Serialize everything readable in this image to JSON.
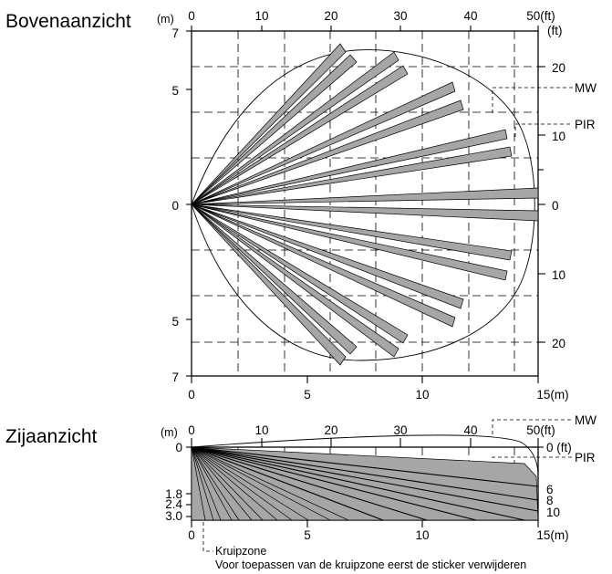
{
  "top_view": {
    "title": "Bovenaanzicht",
    "unit_m": "(m)",
    "unit_ft_top": "50(ft)",
    "unit_ft_right": "(ft)",
    "unit_m_bottom": "15(m)",
    "top_ft_ticks": [
      "0",
      "10",
      "20",
      "30",
      "40"
    ],
    "left_m_ticks": [
      "7",
      "5",
      "0",
      "5",
      "7"
    ],
    "right_ft_ticks": [
      "20",
      "10",
      "0",
      "10",
      "20"
    ],
    "bottom_m_ticks": [
      "0",
      "5",
      "10"
    ],
    "label_mw": "MW",
    "label_pir": "PIR"
  },
  "side_view": {
    "title": "Zijaanzicht",
    "unit_m": "(m)",
    "unit_ft_top": "50(ft)",
    "unit_ft_right": "0 (ft)",
    "unit_m_bottom": "15(m)",
    "top_ft_ticks": [
      "0",
      "10",
      "20",
      "30",
      "40"
    ],
    "left_m_ticks": [
      "0",
      "1.8",
      "2.4",
      "3.0"
    ],
    "right_ft_ticks": [
      "6",
      "8",
      "10"
    ],
    "bottom_m_ticks": [
      "0",
      "5",
      "10"
    ],
    "label_mw": "MW",
    "label_pir": "PIR",
    "crawl_zone_label": "Kruipzone",
    "note": "Voor toepassen van de kruipzone eerst de sticker verwijderen"
  },
  "colors": {
    "beam_fill": "#a6a6a6",
    "line": "#000000",
    "background": "#ffffff"
  }
}
